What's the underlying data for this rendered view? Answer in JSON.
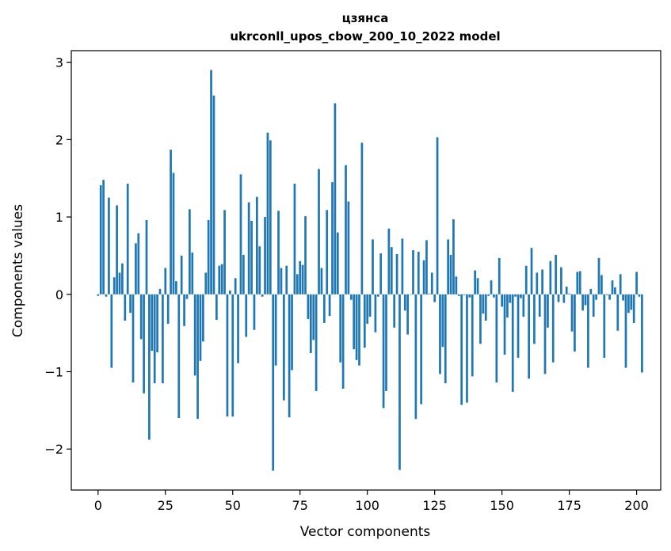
{
  "chart_data": {
    "type": "bar",
    "title_line1": "цзянса",
    "title_line2": "ukrconll_upos_cbow_200_10_2022 model",
    "xlabel": "Vector components",
    "ylabel": "Components values",
    "xlim": [
      -9.95,
      208.95
    ],
    "ylim": [
      -2.53,
      3.15
    ],
    "xticks": [
      0,
      25,
      50,
      75,
      100,
      125,
      150,
      175,
      200
    ],
    "yticks": [
      -2,
      -1,
      0,
      1,
      2,
      3
    ],
    "xtick_labels": [
      "0",
      "25",
      "50",
      "75",
      "100",
      "125",
      "150",
      "175",
      "200"
    ],
    "ytick_labels": [
      "−2",
      "−1",
      "0",
      "1",
      "2",
      "3"
    ],
    "bar_color": "#1f77b4",
    "grid": false,
    "values": [
      -0.02,
      1.41,
      1.48,
      -0.03,
      1.25,
      -0.95,
      0.22,
      1.15,
      0.28,
      0.4,
      -0.34,
      1.43,
      -0.24,
      -1.14,
      0.66,
      0.79,
      -0.58,
      -1.28,
      0.96,
      -1.88,
      -0.73,
      -1.15,
      -0.75,
      0.07,
      -1.15,
      0.34,
      -0.38,
      1.87,
      1.57,
      0.17,
      -1.6,
      0.5,
      -0.41,
      -0.06,
      1.1,
      0.54,
      -1.05,
      -1.61,
      -0.86,
      -0.61,
      0.28,
      0.96,
      2.9,
      2.57,
      -0.33,
      0.37,
      0.39,
      1.09,
      -1.58,
      0.05,
      -1.58,
      0.21,
      -0.89,
      1.55,
      0.51,
      -0.55,
      1.19,
      0.95,
      -0.46,
      1.26,
      0.62,
      -0.03,
      1.0,
      2.09,
      1.99,
      -2.28,
      -0.92,
      1.08,
      0.34,
      -1.37,
      0.37,
      -1.59,
      -0.98,
      1.43,
      0.26,
      0.43,
      0.38,
      1.01,
      -0.32,
      -0.76,
      -0.59,
      -1.25,
      1.62,
      0.34,
      -0.37,
      1.09,
      -0.28,
      1.45,
      2.47,
      0.8,
      -0.88,
      -1.22,
      1.67,
      1.2,
      -0.07,
      -0.71,
      -0.85,
      -0.92,
      1.96,
      -0.69,
      -0.38,
      -0.29,
      0.71,
      -0.49,
      -0.03,
      0.53,
      -1.47,
      -1.25,
      0.85,
      0.61,
      -0.43,
      0.52,
      -2.27,
      0.72,
      -0.21,
      -0.52,
      0.0,
      0.57,
      -1.61,
      0.55,
      -1.42,
      0.44,
      0.7,
      0.01,
      0.28,
      -0.1,
      2.03,
      -1.03,
      -0.68,
      -1.15,
      0.71,
      0.51,
      0.97,
      0.23,
      -0.02,
      -1.43,
      -0.01,
      -1.4,
      -0.04,
      -1.06,
      0.31,
      0.21,
      -0.64,
      -0.25,
      -0.34,
      -0.02,
      0.18,
      -0.04,
      -1.14,
      0.47,
      -0.16,
      -0.78,
      -0.3,
      -0.11,
      -1.26,
      -0.03,
      -0.82,
      -0.05,
      -0.29,
      0.37,
      -1.09,
      0.6,
      -0.64,
      0.28,
      -0.29,
      0.32,
      -1.03,
      -0.43,
      0.43,
      -0.88,
      0.51,
      -0.1,
      0.35,
      -0.11,
      0.1,
      0.01,
      -0.48,
      -0.74,
      0.29,
      0.3,
      -0.21,
      -0.14,
      -0.95,
      0.07,
      -0.29,
      -0.07,
      0.47,
      0.25,
      -0.82,
      -0.01,
      -0.07,
      0.18,
      0.09,
      -0.47,
      0.26,
      -0.08,
      -0.95,
      -0.24,
      -0.2,
      -0.37,
      0.29,
      -0.03,
      -1.01
    ]
  }
}
